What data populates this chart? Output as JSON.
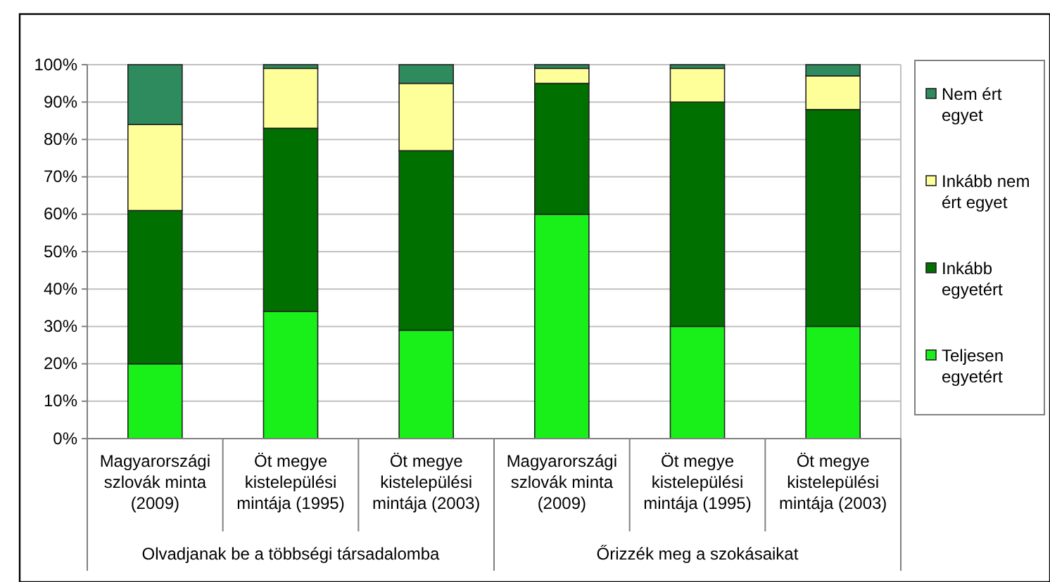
{
  "chart_data": {
    "type": "bar",
    "stacked": true,
    "categories": [
      "Magyarországi szlovák minta (2009)",
      "Öt megye kistelepülési mintája (1995)",
      "Öt megye kistelepülési mintája (2003)",
      "Magyarországi szlovák minta (2009)",
      "Öt megye kistelepülési mintája (1995)",
      "Öt megye kistelepülési mintája (2003)"
    ],
    "series": [
      {
        "name": "Teljesen egyetért",
        "color": "#19f019",
        "values": [
          20,
          34,
          29,
          60,
          30,
          30
        ]
      },
      {
        "name": "Inkább egyetért",
        "color": "#007000",
        "values": [
          41,
          49,
          48,
          35,
          60,
          58
        ]
      },
      {
        "name": "Inkább nem ért egyet",
        "color": "#ffff99",
        "values": [
          23,
          16,
          18,
          4,
          9,
          9
        ]
      },
      {
        "name": "Nem ért egyet",
        "color": "#2e8b5e",
        "values": [
          16,
          1,
          5,
          1,
          1,
          3
        ]
      }
    ],
    "ylim": [
      0,
      100
    ],
    "yticks": [
      {
        "value": 0,
        "label": "0%"
      },
      {
        "value": 10,
        "label": "10%"
      },
      {
        "value": 20,
        "label": "20%"
      },
      {
        "value": 30,
        "label": "30%"
      },
      {
        "value": 40,
        "label": "40%"
      },
      {
        "value": 50,
        "label": "50%"
      },
      {
        "value": 60,
        "label": "60%"
      },
      {
        "value": 70,
        "label": "70%"
      },
      {
        "value": 80,
        "label": "80%"
      },
      {
        "value": 90,
        "label": "90%"
      },
      {
        "value": 100,
        "label": "100%"
      }
    ],
    "grid": "y",
    "legend": "right",
    "annotations": [
      "Olvadjanak be a többségi társadalomba",
      "Őrizzék meg a szokásaikat"
    ]
  }
}
